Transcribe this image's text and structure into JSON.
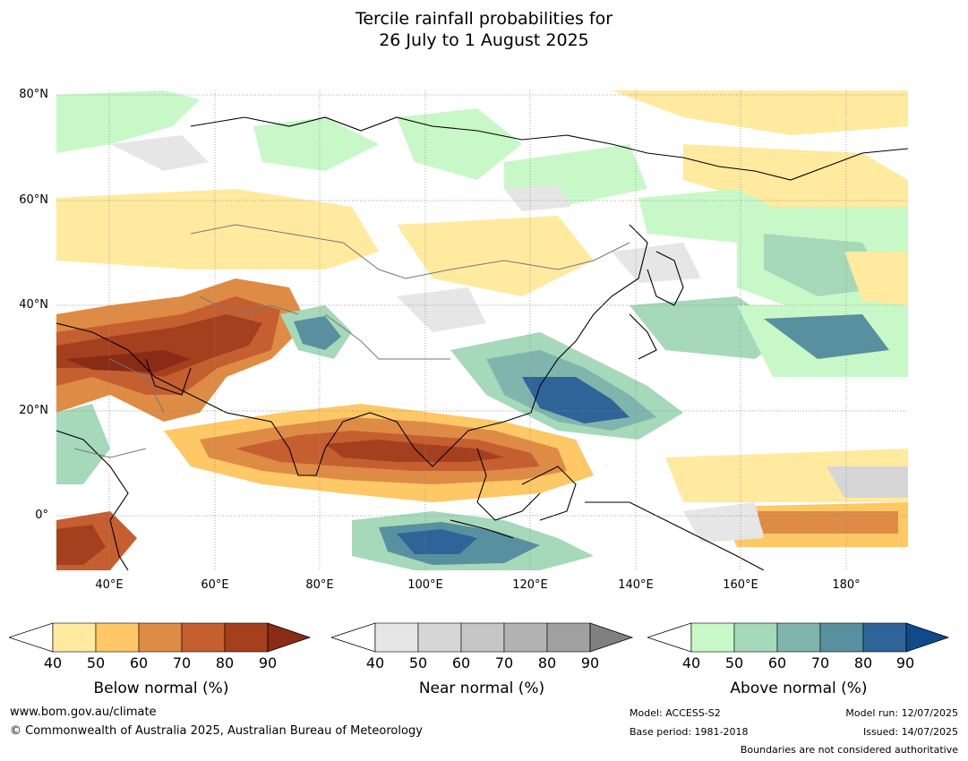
{
  "title": {
    "line1": "Tercile rainfall probabilities for",
    "line2": "26 July to 1 August 2025"
  },
  "map": {
    "lat_labels": [
      "80°N",
      "60°N",
      "40°N",
      "20°N",
      "0°"
    ],
    "lon_labels": [
      "40°E",
      "60°E",
      "80°E",
      "100°E",
      "120°E",
      "140°E",
      "160°E",
      "180°"
    ],
    "lat_range": [
      -10,
      81
    ],
    "lon_range": [
      30,
      192
    ]
  },
  "legends": [
    {
      "title": "Below normal (%)",
      "ticks": [
        "40",
        "50",
        "60",
        "70",
        "80",
        "90"
      ],
      "colors": [
        "#ffeaa0",
        "#fdc865",
        "#de8c45",
        "#c55f30",
        "#a5401e",
        "#8a2b16"
      ]
    },
    {
      "title": "Near normal (%)",
      "ticks": [
        "40",
        "50",
        "60",
        "70",
        "80",
        "90"
      ],
      "colors": [
        "#e6e6e6",
        "#d6d6d6",
        "#c6c6c6",
        "#b3b3b3",
        "#a0a0a0",
        "#808080"
      ]
    },
    {
      "title": "Above normal (%)",
      "ticks": [
        "40",
        "50",
        "60",
        "70",
        "80",
        "90"
      ],
      "colors": [
        "#c8f8c8",
        "#a6d8ba",
        "#7fb5ad",
        "#5890a0",
        "#2f6499",
        "#0f4a8a"
      ]
    }
  ],
  "footer": {
    "website": "www.bom.gov.au/climate",
    "copyright": "© Commonwealth of Australia 2025, Australian Bureau of Meteorology",
    "model": "Model: ACCESS-S2",
    "base_period": "Base period: 1981-2018",
    "model_run": "Model run: 12/07/2025",
    "issued": "Issued: 14/07/2025",
    "disclaimer": "Boundaries are not considered authoritative"
  }
}
